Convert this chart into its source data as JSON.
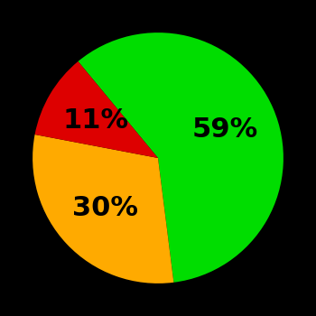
{
  "slices": [
    59,
    30,
    11
  ],
  "colors": [
    "#00dd00",
    "#ffaa00",
    "#dd0000"
  ],
  "labels": [
    "59%",
    "30%",
    "11%"
  ],
  "background_color": "#000000",
  "startangle": 129.6,
  "figsize": [
    3.5,
    3.5
  ],
  "dpi": 100,
  "font_size": 22,
  "font_weight": "bold",
  "text_color": "#000000"
}
